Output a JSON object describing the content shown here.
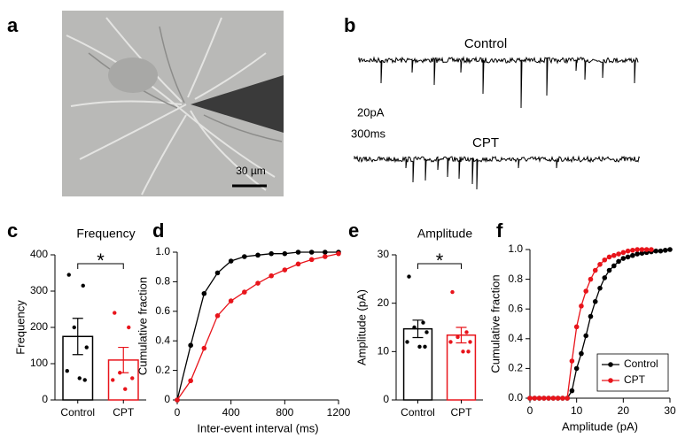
{
  "panels": {
    "a": {
      "letter": "a",
      "scale_bar": "30 µm"
    },
    "b": {
      "letter": "b",
      "traces": [
        {
          "label": "Control",
          "color": "#000000"
        },
        {
          "label": "CPT",
          "color": "#e8141b"
        }
      ],
      "scale_y": "20pA",
      "scale_x": "300ms"
    }
  },
  "chart_data": [
    {
      "type": "bar",
      "panel": "c",
      "title": "Frequency",
      "ylabel": "Frequency",
      "categories": [
        "Control",
        "CPT"
      ],
      "values": [
        175,
        110
      ],
      "errors": [
        50,
        35
      ],
      "points": [
        [
          345,
          315,
          200,
          145,
          80,
          60,
          55
        ],
        [
          240,
          200,
          75,
          60,
          55,
          30
        ]
      ],
      "colors": [
        "#000000",
        "#e8141b"
      ],
      "significance": "*",
      "ylim": [
        0,
        400
      ],
      "yticks": [
        0,
        100,
        200,
        300,
        400
      ]
    },
    {
      "type": "line",
      "panel": "d",
      "xlabel": "Inter-event interval (ms)",
      "ylabel": "Cumulative fraction",
      "x": [
        0,
        100,
        200,
        300,
        400,
        500,
        600,
        700,
        800,
        900,
        1000,
        1100,
        1200
      ],
      "series": [
        {
          "color": "#000000",
          "values": [
            0,
            0.37,
            0.72,
            0.86,
            0.94,
            0.97,
            0.98,
            0.99,
            0.99,
            1,
            1,
            1,
            1
          ]
        },
        {
          "color": "#e8141b",
          "values": [
            0,
            0.13,
            0.35,
            0.57,
            0.67,
            0.73,
            0.79,
            0.84,
            0.88,
            0.92,
            0.95,
            0.97,
            0.99
          ]
        }
      ],
      "xlim": [
        0,
        1200
      ],
      "xticks": [
        0,
        400,
        800,
        1200
      ],
      "ylim": [
        0,
        1
      ],
      "yticks": [
        0,
        0.2,
        0.4,
        0.6,
        0.8,
        {
          "value": 1,
          "label": "1.0"
        }
      ]
    },
    {
      "type": "bar",
      "panel": "e",
      "title": "Amplitude",
      "ylabel": "Amplitude (pA)",
      "categories": [
        "Control",
        "CPT"
      ],
      "values": [
        14.7,
        13.4
      ],
      "errors": [
        1.8,
        1.6
      ],
      "points": [
        [
          25.5,
          16,
          15,
          14,
          12,
          11,
          11
        ],
        [
          22.3,
          14,
          13,
          12,
          12,
          10,
          10
        ]
      ],
      "colors": [
        "#000000",
        "#e8141b"
      ],
      "significance": "*",
      "ylim": [
        0,
        30
      ],
      "yticks": [
        0,
        10,
        20,
        30
      ]
    },
    {
      "type": "line",
      "panel": "f",
      "xlabel": "Amplitude (pA)",
      "ylabel": "Cumulative fraction",
      "legend": "lower right",
      "x": [
        0,
        1,
        2,
        3,
        4,
        5,
        6,
        7,
        8,
        9,
        10,
        11,
        12,
        13,
        14,
        15,
        16,
        17,
        18,
        19,
        20,
        21,
        22,
        23,
        24,
        25,
        26,
        27,
        28,
        29,
        30
      ],
      "series": [
        {
          "name": "Control",
          "color": "#000000",
          "values": [
            0,
            0,
            0,
            0,
            0,
            0,
            0,
            0,
            0,
            0.05,
            0.2,
            0.3,
            0.42,
            0.55,
            0.65,
            0.74,
            0.81,
            0.86,
            0.89,
            0.92,
            0.94,
            0.95,
            0.96,
            0.97,
            0.975,
            0.98,
            0.985,
            0.99,
            0.99,
            0.995,
            1
          ]
        },
        {
          "name": "CPT",
          "color": "#e8141b",
          "values": [
            0,
            0,
            0,
            0,
            0,
            0,
            0,
            0,
            0,
            0.25,
            0.48,
            0.62,
            0.72,
            0.8,
            0.86,
            0.9,
            0.93,
            0.95,
            0.96,
            0.97,
            0.98,
            0.99,
            0.995,
            1,
            1,
            1,
            1,
            null,
            null,
            null,
            null
          ]
        }
      ],
      "xlim": [
        0,
        30
      ],
      "xticks": [
        0,
        10,
        20,
        30
      ],
      "ylim": [
        0,
        1
      ],
      "yticks": [
        {
          "value": 0,
          "label": "0.0"
        },
        0.2,
        0.4,
        0.6,
        0.8,
        {
          "value": 1,
          "label": "1.0"
        }
      ]
    }
  ]
}
